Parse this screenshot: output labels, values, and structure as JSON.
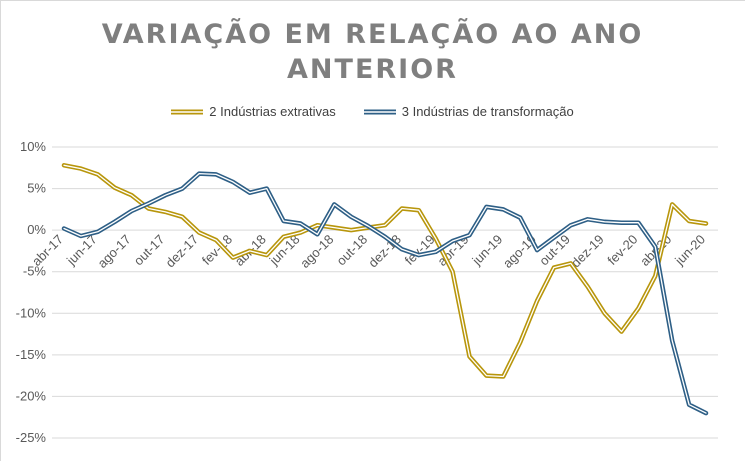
{
  "chart_data": {
    "type": "line",
    "title": "VARIAÇÃO EM RELAÇÃO AO ANO\nANTERIOR",
    "xlabel": "",
    "ylabel": "",
    "ylim": [
      -25,
      10
    ],
    "y_ticks": [
      "10%",
      "5%",
      "0%",
      "-5%",
      "-10%",
      "-15%",
      "-20%",
      "-25%"
    ],
    "y_tick_values": [
      10,
      5,
      0,
      -5,
      -10,
      -15,
      -20,
      -25
    ],
    "x_tick_labels": [
      "abr-17",
      "jun-17",
      "ago-17",
      "out-17",
      "dez-17",
      "fev-18",
      "abr-18",
      "jun-18",
      "ago-18",
      "out-18",
      "dez-18",
      "fev-19",
      "abr-19",
      "jun-19",
      "ago-19",
      "out-19",
      "dez-19",
      "fev-20",
      "abr-20",
      "jun-20"
    ],
    "legend_position": "top",
    "grid": "horizontal",
    "categories": [
      "abr-17",
      "mai-17",
      "jun-17",
      "jul-17",
      "ago-17",
      "set-17",
      "out-17",
      "nov-17",
      "dez-17",
      "jan-18",
      "fev-18",
      "mar-18",
      "abr-18",
      "mai-18",
      "jun-18",
      "jul-18",
      "ago-18",
      "set-18",
      "out-18",
      "nov-18",
      "dez-18",
      "jan-19",
      "fev-19",
      "mar-19",
      "abr-19",
      "mai-19",
      "jun-19",
      "jul-19",
      "ago-19",
      "set-19",
      "out-19",
      "nov-19",
      "dez-19",
      "jan-20",
      "fev-20",
      "mar-20",
      "abr-20",
      "mai-20",
      "jun-20"
    ],
    "series": [
      {
        "name": "2 Indústrias extrativas",
        "color": "#b8960c",
        "values": [
          7.8,
          7.4,
          6.7,
          5.1,
          4.2,
          2.6,
          2.2,
          1.6,
          -0.3,
          -1.2,
          -3.3,
          -2.5,
          -3.0,
          -0.8,
          -0.3,
          0.6,
          0.3,
          0.0,
          0.3,
          0.6,
          2.6,
          2.4,
          -1.0,
          -5.0,
          -15.2,
          -17.5,
          -17.6,
          -13.5,
          -8.5,
          -4.5,
          -4.0,
          -6.8,
          -10.0,
          -12.2,
          -9.4,
          -5.5,
          3.1,
          1.1,
          0.8
        ]
      },
      {
        "name": "3 Indústrias de transformação",
        "color": "#2e5f86",
        "values": [
          0.2,
          -0.7,
          -0.2,
          1.0,
          2.3,
          3.2,
          4.2,
          5.0,
          6.8,
          6.7,
          5.8,
          4.5,
          5.0,
          1.1,
          0.8,
          -0.5,
          3.1,
          1.6,
          0.5,
          -0.8,
          -2.3,
          -3.0,
          -2.6,
          -1.3,
          -0.6,
          2.8,
          2.5,
          1.5,
          -2.4,
          -0.9,
          0.6,
          1.3,
          1.0,
          0.9,
          0.9,
          -2.0,
          -13.3,
          -21.0,
          -22.0
        ]
      }
    ]
  }
}
